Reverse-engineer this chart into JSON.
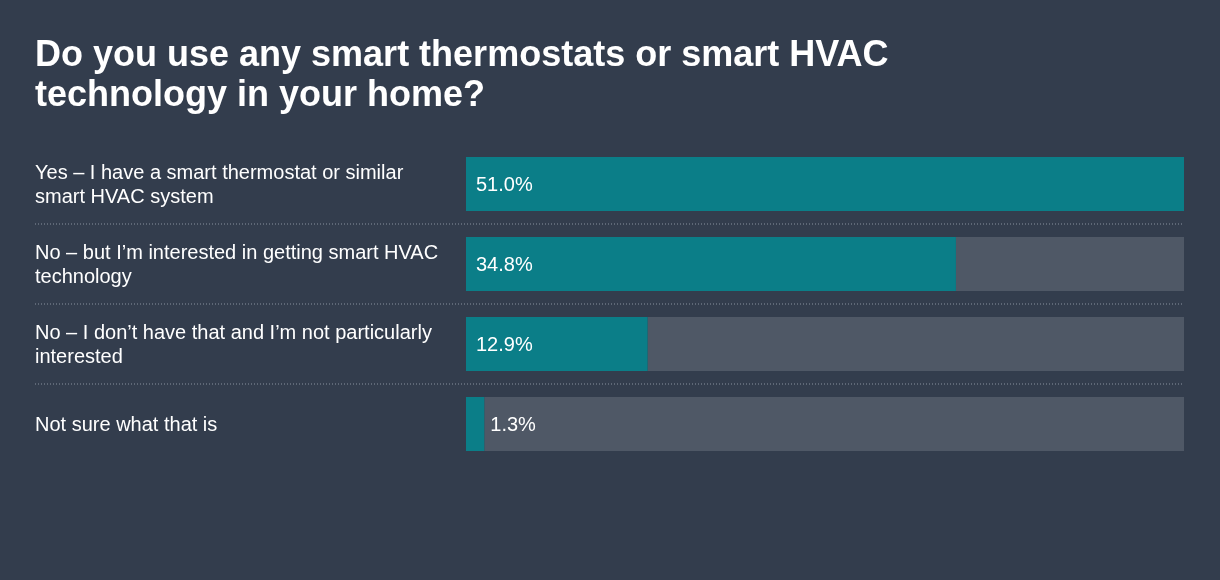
{
  "chart_data": {
    "type": "bar",
    "orientation": "horizontal",
    "title": "Do you use any smart thermostats or smart HVAC technology in your home?",
    "categories": [
      "Yes – I have a smart thermostat or similar smart HVAC system",
      "No – but I’m interested in getting smart HVAC technology",
      "No – I don’t have that and I’m not particularly interested",
      "Not sure what that is"
    ],
    "values": [
      51.0,
      34.8,
      12.9,
      1.3
    ],
    "value_labels": [
      "51.0%",
      "34.8%",
      "12.9%",
      "1.3%"
    ],
    "color": "#0b7e88"
  }
}
